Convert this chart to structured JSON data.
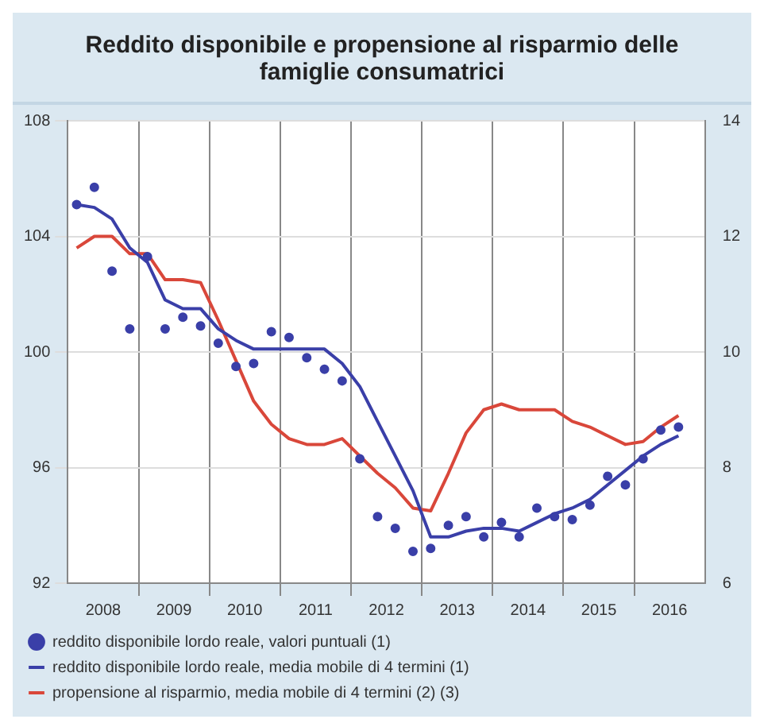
{
  "chart_data": {
    "type": "line",
    "title": "Reddito disponibile e propensione al risparmio delle famiglie consumatrici",
    "x": [
      2008.125,
      2008.375,
      2008.625,
      2008.875,
      2009.125,
      2009.375,
      2009.625,
      2009.875,
      2010.125,
      2010.375,
      2010.625,
      2010.875,
      2011.125,
      2011.375,
      2011.625,
      2011.875,
      2012.125,
      2012.375,
      2012.625,
      2012.875,
      2013.125,
      2013.375,
      2013.625,
      2013.875,
      2014.125,
      2014.375,
      2014.625,
      2014.875,
      2015.125,
      2015.375,
      2015.625,
      2015.875,
      2016.125,
      2016.375,
      2016.625
    ],
    "series": [
      {
        "name": "reddito disponibile lordo reale, valori puntuali (1)",
        "type": "scatter",
        "marker": "circle",
        "color": "#3a3fa8",
        "values": [
          105.1,
          105.7,
          102.8,
          100.8,
          103.3,
          100.8,
          101.2,
          100.9,
          100.3,
          99.5,
          99.6,
          100.7,
          100.5,
          99.8,
          99.4,
          99.0,
          96.3,
          94.3,
          93.9,
          93.1,
          93.2,
          94.0,
          94.3,
          93.6,
          94.1,
          93.6,
          94.6,
          94.3,
          94.2,
          94.7,
          95.7,
          95.4,
          96.3,
          97.3,
          97.4
        ]
      },
      {
        "name": "reddito disponibile lordo reale, media mobile di 4 termini (1)",
        "type": "line",
        "marker": "none",
        "color": "#3a3fa8",
        "values": [
          105.1,
          105.0,
          104.6,
          103.6,
          103.1,
          101.8,
          101.5,
          101.5,
          100.8,
          100.4,
          100.1,
          100.1,
          100.1,
          100.1,
          100.1,
          99.6,
          98.8,
          97.6,
          96.4,
          95.2,
          93.6,
          93.6,
          93.8,
          93.9,
          93.9,
          93.8,
          94.1,
          94.4,
          94.6,
          94.9,
          95.4,
          95.9,
          96.4,
          96.8,
          97.1
        ]
      },
      {
        "name": "propensione al risparmio, media mobile di 4 termini (2) (3)",
        "type": "line",
        "marker": "none",
        "axis": "y2",
        "color": "#d9473a",
        "values": [
          11.8,
          12.0,
          12.0,
          11.7,
          11.7,
          11.25,
          11.25,
          11.2,
          10.55,
          9.85,
          9.15,
          8.75,
          8.5,
          8.4,
          8.4,
          8.5,
          8.2,
          7.9,
          7.65,
          7.3,
          7.25,
          7.9,
          8.6,
          9.0,
          9.1,
          9.0,
          9.0,
          9.0,
          8.8,
          8.7,
          8.55,
          8.4,
          8.45,
          8.7,
          8.9
        ]
      }
    ],
    "xlim": [
      2008,
      2017
    ],
    "xticks": [
      {
        "value": 2008.5,
        "label": "2008"
      },
      {
        "value": 2009,
        "label": null
      },
      {
        "value": 2009.5,
        "label": "2009"
      },
      {
        "value": 2010,
        "label": null
      },
      {
        "value": 2010.5,
        "label": "2010"
      },
      {
        "value": 2011,
        "label": null
      },
      {
        "value": 2011.5,
        "label": "2011"
      },
      {
        "value": 2012,
        "label": null
      },
      {
        "value": 2012.5,
        "label": "2012"
      },
      {
        "value": 2013,
        "label": null
      },
      {
        "value": 2013.5,
        "label": "2013"
      },
      {
        "value": 2014,
        "label": null
      },
      {
        "value": 2014.5,
        "label": "2014"
      },
      {
        "value": 2015,
        "label": null
      },
      {
        "value": 2015.5,
        "label": "2015"
      },
      {
        "value": 2016,
        "label": null
      },
      {
        "value": 2016.5,
        "label": "2016"
      }
    ],
    "ylim": [
      92,
      108
    ],
    "yticks": [
      92,
      96,
      100,
      104,
      108
    ],
    "y2lim": [
      6,
      14
    ],
    "y2ticks": [
      6,
      8,
      10,
      12,
      14
    ],
    "grid": true,
    "legend": "bottom"
  }
}
